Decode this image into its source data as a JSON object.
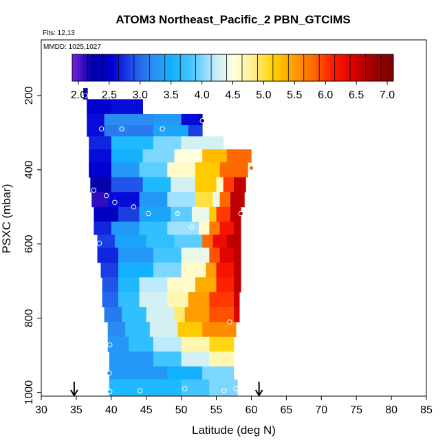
{
  "chart_data": {
    "type": "heatmap",
    "title": "ATOM3 Northeast_Pacific_2 PBN_GTCIMS",
    "flights_label": "Flts: 12,13",
    "dates_label": "MMDD: 1025,1027",
    "xlabel": "Latitude (deg N)",
    "ylabel": "PSXC (mbar)",
    "xlim": [
      30,
      85
    ],
    "ylim": [
      1010,
      50
    ],
    "x_ticks": [
      30,
      35,
      40,
      45,
      50,
      55,
      60,
      65,
      70,
      75,
      80,
      85
    ],
    "y_ticks": [
      200,
      400,
      600,
      800,
      1000
    ],
    "colorbar": {
      "min": 1.9,
      "max": 7.1,
      "ticks": [
        2.0,
        2.5,
        3.0,
        3.5,
        4.0,
        4.5,
        5.0,
        5.5,
        6.0,
        6.5,
        7.0
      ],
      "tick_labels": [
        "2.0",
        "2.5",
        "3.0",
        "3.5",
        "4.0",
        "4.5",
        "5.0",
        "5.5",
        "6.0",
        "6.5",
        "7.0"
      ],
      "colors": [
        "#7a1fe0",
        "#0000a8",
        "#0000d6",
        "#2050e8",
        "#2a8cf2",
        "#12b4ff",
        "#4cc8ff",
        "#b8e8ff",
        "#ffffe0",
        "#fff090",
        "#ffd200",
        "#ffa000",
        "#ff6a00",
        "#ff1a00",
        "#d80000",
        "#a00000",
        "#7a0000"
      ]
    },
    "arrows_lat": [
      34.7,
      61.1
    ],
    "color_note": "fill values in colorbar units by latitude band per pressure layer",
    "layers": [
      {
        "p0": 180,
        "p1": 210,
        "bands": [
          [
            36.0,
            36.6,
            2.4
          ]
        ]
      },
      {
        "p0": 210,
        "p1": 250,
        "bands": [
          [
            36.5,
            40.0,
            2.5
          ],
          [
            40.0,
            44.5,
            2.6
          ]
        ]
      },
      {
        "p0": 250,
        "p1": 280,
        "bands": [
          [
            36.5,
            39.0,
            2.6
          ],
          [
            39.0,
            46.0,
            3.2
          ],
          [
            46.0,
            50.0,
            3.3
          ],
          [
            50.0,
            52.5,
            2.6
          ],
          [
            52.5,
            53.0,
            2.2
          ]
        ]
      },
      {
        "p0": 280,
        "p1": 310,
        "bands": [
          [
            36.5,
            39.0,
            2.6
          ],
          [
            39.0,
            46.0,
            3.1
          ],
          [
            46.0,
            51.0,
            3.4
          ],
          [
            51.0,
            53.0,
            2.8
          ]
        ]
      },
      {
        "p0": 310,
        "p1": 345,
        "bands": [
          [
            36.8,
            40.0,
            2.7
          ],
          [
            40.0,
            46.0,
            3.6
          ],
          [
            46.0,
            50.0,
            4.0
          ],
          [
            50.0,
            56.0,
            4.3
          ]
        ]
      },
      {
        "p0": 345,
        "p1": 380,
        "bands": [
          [
            36.8,
            40.0,
            2.6
          ],
          [
            40.0,
            44.5,
            3.5
          ],
          [
            44.5,
            49.0,
            4.0
          ],
          [
            49.0,
            53.0,
            4.5
          ],
          [
            53.0,
            56.5,
            5.3
          ],
          [
            56.5,
            60.0,
            5.8
          ]
        ]
      },
      {
        "p0": 380,
        "p1": 420,
        "bands": [
          [
            36.8,
            40.0,
            2.5
          ],
          [
            40.0,
            44.0,
            3.3
          ],
          [
            44.0,
            48.0,
            3.9
          ],
          [
            48.0,
            52.0,
            4.6
          ],
          [
            52.0,
            55.5,
            5.2
          ],
          [
            55.5,
            59.5,
            5.8
          ]
        ]
      },
      {
        "p0": 420,
        "p1": 460,
        "bands": [
          [
            37.0,
            40.0,
            2.2
          ],
          [
            40.0,
            44.5,
            2.9
          ],
          [
            44.5,
            48.5,
            3.6
          ],
          [
            48.5,
            52.0,
            4.3
          ],
          [
            52.0,
            55.0,
            5.2
          ],
          [
            55.0,
            56.0,
            4.6
          ],
          [
            56.0,
            57.5,
            6.0
          ],
          [
            57.5,
            59.2,
            6.6
          ]
        ]
      },
      {
        "p0": 460,
        "p1": 500,
        "bands": [
          [
            37.2,
            39.5,
            2.1
          ],
          [
            39.5,
            44.0,
            2.6
          ],
          [
            44.0,
            48.0,
            3.3
          ],
          [
            48.0,
            52.0,
            4.1
          ],
          [
            52.0,
            54.5,
            5.0
          ],
          [
            54.5,
            55.5,
            4.4
          ],
          [
            55.5,
            57.0,
            5.8
          ],
          [
            57.0,
            59.0,
            6.6
          ]
        ]
      },
      {
        "p0": 500,
        "p1": 540,
        "bands": [
          [
            37.5,
            41.0,
            2.4
          ],
          [
            41.0,
            44.0,
            2.8
          ],
          [
            44.0,
            48.5,
            3.4
          ],
          [
            48.5,
            51.5,
            3.9
          ],
          [
            51.5,
            54.0,
            4.4
          ],
          [
            54.0,
            55.0,
            5.2
          ],
          [
            55.0,
            57.0,
            6.0
          ],
          [
            57.0,
            58.5,
            6.6
          ]
        ]
      },
      {
        "p0": 540,
        "p1": 575,
        "bands": [
          [
            37.5,
            40.0,
            2.7
          ],
          [
            40.0,
            44.0,
            3.3
          ],
          [
            44.0,
            48.0,
            3.7
          ],
          [
            48.0,
            52.5,
            4.1
          ],
          [
            52.5,
            54.0,
            4.6
          ],
          [
            54.0,
            55.5,
            5.7
          ],
          [
            55.5,
            57.5,
            6.2
          ],
          [
            57.5,
            58.5,
            6.6
          ]
        ]
      },
      {
        "p0": 575,
        "p1": 610,
        "bands": [
          [
            38.0,
            40.5,
            2.8
          ],
          [
            40.5,
            45.0,
            3.4
          ],
          [
            45.0,
            49.0,
            3.7
          ],
          [
            49.0,
            53.0,
            3.9
          ],
          [
            53.0,
            54.5,
            5.8
          ],
          [
            54.5,
            56.5,
            6.3
          ],
          [
            56.5,
            58.5,
            6.6
          ]
        ]
      },
      {
        "p0": 610,
        "p1": 650,
        "bands": [
          [
            38.0,
            41.0,
            2.7
          ],
          [
            41.0,
            46.0,
            3.3
          ],
          [
            46.0,
            50.0,
            3.8
          ],
          [
            50.0,
            54.0,
            4.4
          ],
          [
            54.0,
            55.5,
            5.9
          ],
          [
            55.5,
            57.5,
            6.4
          ],
          [
            57.5,
            58.5,
            6.6
          ]
        ]
      },
      {
        "p0": 650,
        "p1": 690,
        "bands": [
          [
            38.5,
            41.0,
            2.8
          ],
          [
            41.0,
            46.0,
            3.5
          ],
          [
            46.0,
            50.0,
            4.0
          ],
          [
            50.0,
            53.5,
            4.6
          ],
          [
            53.5,
            55.0,
            5.5
          ],
          [
            55.0,
            57.5,
            6.2
          ],
          [
            57.5,
            58.5,
            6.6
          ]
        ]
      },
      {
        "p0": 690,
        "p1": 730,
        "bands": [
          [
            38.7,
            41.0,
            2.9
          ],
          [
            41.0,
            44.0,
            3.6
          ],
          [
            44.0,
            48.0,
            4.2
          ],
          [
            48.0,
            52.0,
            4.6
          ],
          [
            52.0,
            55.0,
            5.4
          ],
          [
            55.0,
            57.5,
            6.1
          ],
          [
            57.5,
            58.5,
            6.6
          ]
        ]
      },
      {
        "p0": 730,
        "p1": 770,
        "bands": [
          [
            38.7,
            41.0,
            3.0
          ],
          [
            41.0,
            44.0,
            3.7
          ],
          [
            44.0,
            48.0,
            4.3
          ],
          [
            48.0,
            51.0,
            4.7
          ],
          [
            51.0,
            54.0,
            5.5
          ],
          [
            54.0,
            57.5,
            6.0
          ],
          [
            57.5,
            58.3,
            6.5
          ]
        ]
      },
      {
        "p0": 770,
        "p1": 810,
        "bands": [
          [
            39.0,
            41.5,
            3.1
          ],
          [
            41.5,
            45.0,
            3.7
          ],
          [
            45.0,
            49.0,
            4.3
          ],
          [
            49.0,
            50.5,
            4.9
          ],
          [
            50.5,
            54.0,
            5.5
          ],
          [
            54.0,
            57.5,
            5.9
          ],
          [
            57.5,
            58.3,
            6.4
          ]
        ]
      },
      {
        "p0": 810,
        "p1": 850,
        "bands": [
          [
            39.5,
            42.0,
            3.2
          ],
          [
            42.0,
            45.5,
            3.7
          ],
          [
            45.5,
            49.5,
            4.3
          ],
          [
            49.5,
            53.0,
            5.2
          ],
          [
            53.0,
            57.8,
            5.6
          ]
        ]
      },
      {
        "p0": 850,
        "p1": 890,
        "bands": [
          [
            39.5,
            42.5,
            3.3
          ],
          [
            42.5,
            46.0,
            3.7
          ],
          [
            46.0,
            50.0,
            4.2
          ],
          [
            50.0,
            54.0,
            4.7
          ],
          [
            54.0,
            57.5,
            5.1
          ]
        ]
      },
      {
        "p0": 890,
        "p1": 930,
        "bands": [
          [
            39.7,
            46.0,
            3.3
          ],
          [
            46.0,
            50.0,
            3.8
          ],
          [
            50.0,
            54.0,
            4.3
          ],
          [
            54.0,
            57.5,
            4.7
          ]
        ]
      },
      {
        "p0": 930,
        "p1": 965,
        "bands": [
          [
            39.7,
            48.0,
            3.3
          ],
          [
            48.0,
            53.0,
            3.5
          ],
          [
            53.0,
            57.5,
            4.0
          ]
        ]
      },
      {
        "p0": 965,
        "p1": 1010,
        "bands": [
          [
            39.7,
            50.0,
            3.6
          ],
          [
            50.0,
            54.0,
            3.8
          ],
          [
            54.0,
            58.0,
            4.0
          ]
        ]
      }
    ],
    "points": [
      {
        "lat": 36.3,
        "p": 200,
        "value": 2.4
      },
      {
        "lat": 38.6,
        "p": 290,
        "value": 2.6
      },
      {
        "lat": 41.5,
        "p": 290,
        "value": 3.2
      },
      {
        "lat": 47.3,
        "p": 290,
        "value": 3.3
      },
      {
        "lat": 53.0,
        "p": 268,
        "value": 2.2
      },
      {
        "lat": 60.0,
        "p": 395,
        "value": 5.8
      },
      {
        "lat": 37.5,
        "p": 455,
        "value": 2.2
      },
      {
        "lat": 39.3,
        "p": 470,
        "value": 2.1
      },
      {
        "lat": 40.5,
        "p": 488,
        "value": 2.5
      },
      {
        "lat": 43.2,
        "p": 500,
        "value": 2.7
      },
      {
        "lat": 45.3,
        "p": 518,
        "value": 3.3
      },
      {
        "lat": 49.5,
        "p": 518,
        "value": 4.0
      },
      {
        "lat": 51.5,
        "p": 555,
        "value": 4.1
      },
      {
        "lat": 58.5,
        "p": 518,
        "value": 6.6
      },
      {
        "lat": 38.3,
        "p": 598,
        "value": 2.8
      },
      {
        "lat": 56.9,
        "p": 810,
        "value": 5.9
      },
      {
        "lat": 39.8,
        "p": 872,
        "value": 3.3
      },
      {
        "lat": 39.7,
        "p": 948,
        "value": 3.3
      },
      {
        "lat": 39.8,
        "p": 998,
        "value": 3.6
      },
      {
        "lat": 44.1,
        "p": 996,
        "value": 3.6
      },
      {
        "lat": 50.5,
        "p": 990,
        "value": 3.8
      },
      {
        "lat": 56.1,
        "p": 995,
        "value": 4.0
      },
      {
        "lat": 57.8,
        "p": 990,
        "value": 4.0
      }
    ]
  }
}
